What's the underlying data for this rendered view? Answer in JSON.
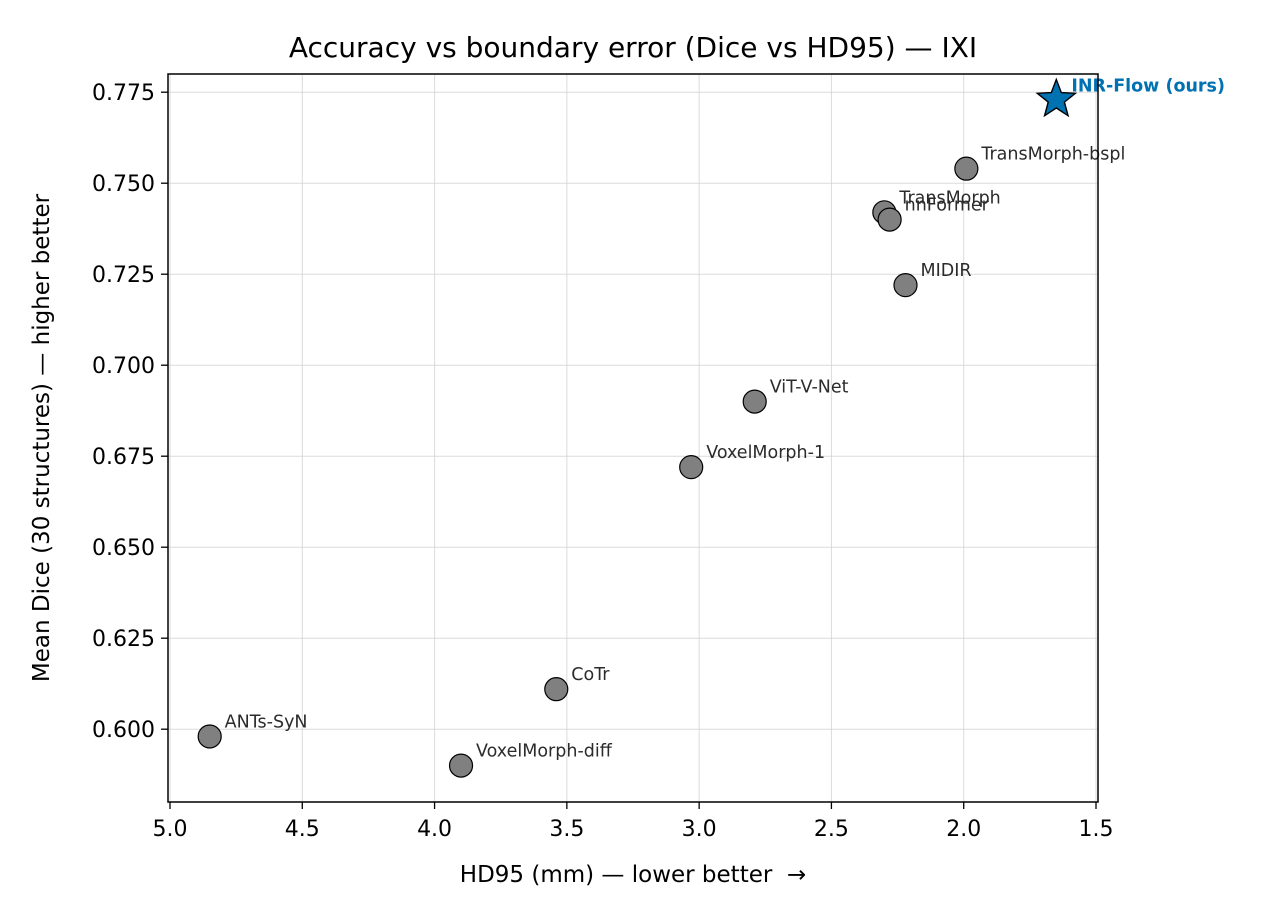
{
  "chart_data": {
    "type": "scatter",
    "title": "Accuracy vs boundary error (Dice vs HD95) — IXI",
    "xlabel": "HD95 (mm) — lower better  →",
    "ylabel": "Mean Dice (30 structures) — higher better",
    "x_inverted": true,
    "xlim": [
      5.0,
      1.5
    ],
    "ylim": [
      0.58,
      0.78
    ],
    "xticks": [
      "5.0",
      "4.5",
      "4.0",
      "3.5",
      "3.0",
      "2.5",
      "2.0",
      "1.5"
    ],
    "xtick_values": [
      5.0,
      4.5,
      4.0,
      3.5,
      3.0,
      2.5,
      2.0,
      1.5
    ],
    "yticks": [
      "0.600",
      "0.625",
      "0.650",
      "0.675",
      "0.700",
      "0.725",
      "0.750",
      "0.775"
    ],
    "ytick_values": [
      0.6,
      0.625,
      0.65,
      0.675,
      0.7,
      0.725,
      0.75,
      0.775
    ],
    "grid": true,
    "colors": {
      "baseline": "#808080",
      "ours": "#0072b2",
      "ours_label": "#0072b2",
      "label": "#2b2b2b"
    },
    "points": [
      {
        "name": "ANTs-SyN",
        "x": 4.85,
        "y": 0.598,
        "marker": "circle"
      },
      {
        "name": "VoxelMorph-diff",
        "x": 3.9,
        "y": 0.59,
        "marker": "circle"
      },
      {
        "name": "CoTr",
        "x": 3.54,
        "y": 0.611,
        "marker": "circle"
      },
      {
        "name": "VoxelMorph-1",
        "x": 3.03,
        "y": 0.672,
        "marker": "circle"
      },
      {
        "name": "ViT-V-Net",
        "x": 2.79,
        "y": 0.69,
        "marker": "circle"
      },
      {
        "name": "MIDIR",
        "x": 2.22,
        "y": 0.722,
        "marker": "circle"
      },
      {
        "name": "TransMorph",
        "x": 2.3,
        "y": 0.742,
        "marker": "circle"
      },
      {
        "name": "nnFormer",
        "x": 2.28,
        "y": 0.74,
        "marker": "circle"
      },
      {
        "name": "TransMorph-bspl",
        "x": 1.99,
        "y": 0.754,
        "marker": "circle"
      },
      {
        "name": "INR-Flow (ours)",
        "x": 1.65,
        "y": 0.773,
        "marker": "star",
        "highlight": true
      }
    ]
  }
}
